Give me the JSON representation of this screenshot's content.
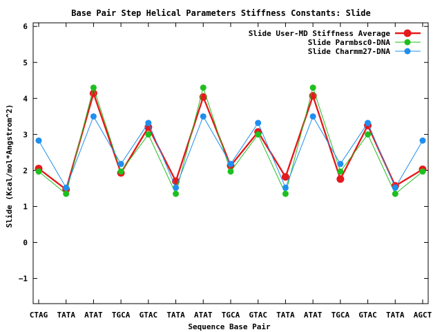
{
  "chart_data": {
    "type": "line",
    "title": "Base Pair Step Helical Parameters Stiffness Constants: Slide",
    "xlabel": "Sequence Base Pair",
    "ylabel": "Slide (Kcal/mol*Angstrom^2)",
    "categories": [
      "CTAG",
      "TATA",
      "ATAT",
      "TGCA",
      "GTAC",
      "TATA",
      "ATAT",
      "TGCA",
      "GTAC",
      "TATA",
      "ATAT",
      "TGCA",
      "GTAC",
      "TATA",
      "AGCT"
    ],
    "ylim": [
      -1.7,
      6.1
    ],
    "yticks": [
      -1,
      0,
      1,
      2,
      3,
      4,
      5,
      6
    ],
    "grid": false,
    "legend_position": "top-right",
    "series": [
      {
        "name": "Slide User-MD Stiffness Average",
        "color": "#e41a1c",
        "values": [
          2.05,
          1.47,
          4.14,
          1.93,
          3.2,
          1.7,
          4.04,
          2.13,
          3.07,
          1.82,
          4.07,
          1.76,
          3.25,
          1.57,
          2.03
        ]
      },
      {
        "name": "Slide Parmbsc0-DNA",
        "color": "#1fbf1f",
        "values": [
          1.97,
          1.35,
          4.3,
          1.97,
          3.0,
          1.35,
          4.3,
          1.97,
          3.0,
          1.35,
          4.3,
          1.97,
          3.0,
          1.35,
          1.97
        ]
      },
      {
        "name": "Slide Charmm27-DNA",
        "color": "#1f8fef",
        "values": [
          2.83,
          1.52,
          3.5,
          2.18,
          3.32,
          1.52,
          3.5,
          2.18,
          3.32,
          1.52,
          3.5,
          2.18,
          3.32,
          1.52,
          2.83
        ]
      }
    ]
  }
}
